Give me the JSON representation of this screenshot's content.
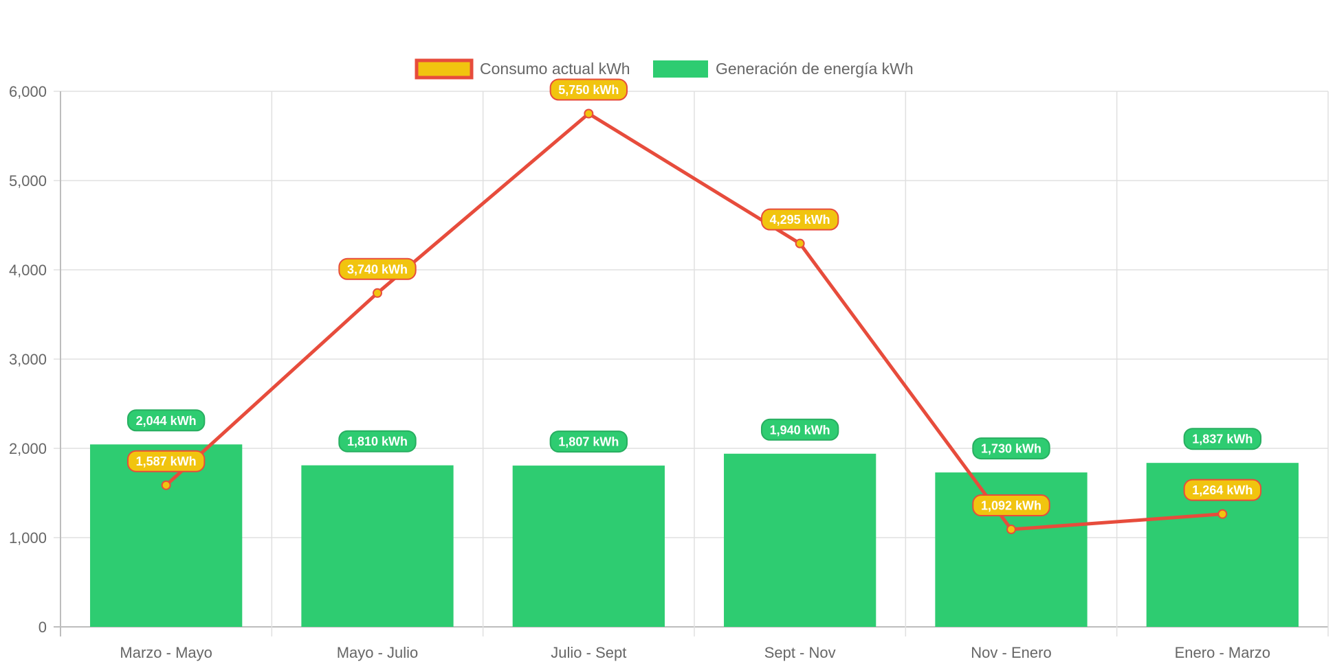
{
  "chart_data": {
    "type": "bar",
    "categories": [
      "Marzo - Mayo",
      "Mayo - Julio",
      "Julio - Sept",
      "Sept - Nov",
      "Nov - Enero",
      "Enero - Marzo"
    ],
    "series": [
      {
        "name": "Consumo actual kWh",
        "type": "line",
        "values": [
          1587,
          3740,
          5750,
          4295,
          1092,
          1264
        ],
        "labels": [
          "1,587 kWh",
          "3,740 kWh",
          "5,750 kWh",
          "4,295 kWh",
          "1,092 kWh",
          "1,264 kWh"
        ],
        "line_color": "#e74c3c",
        "fill_color": "#f1c40f"
      },
      {
        "name": "Generación de energía kWh",
        "type": "bar",
        "values": [
          2044,
          1810,
          1807,
          1940,
          1730,
          1837
        ],
        "labels": [
          "2,044 kWh",
          "1,810 kWh",
          "1,807 kWh",
          "1,940 kWh",
          "1,730 kWh",
          "1,837 kWh"
        ],
        "color": "#2ecc71",
        "label_border": "#27ae60"
      }
    ],
    "y_ticks": [
      "0",
      "1,000",
      "2,000",
      "3,000",
      "4,000",
      "5,000",
      "6,000"
    ],
    "ylim": [
      0,
      6000
    ],
    "grid": true,
    "legend": "top-center"
  }
}
